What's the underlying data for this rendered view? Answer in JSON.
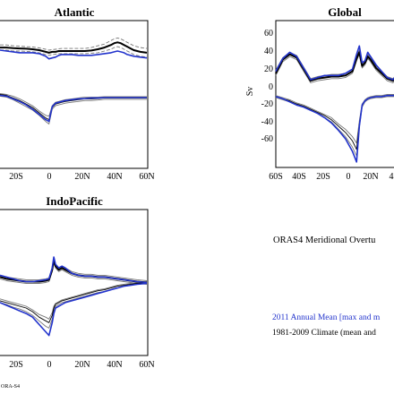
{
  "colors": {
    "year_2011": "#2233cc",
    "climate_mean": "#000000",
    "climate_range": "#777777"
  },
  "headline": "ORAS4 Meridional Overtu",
  "legend": {
    "year_2011": "2011 Annual Mean [max and m",
    "climate": "1981-2009 Climate (mean and"
  },
  "credit": "ORA-S4",
  "chart_data": [
    {
      "type": "line",
      "title": "Atlantic",
      "xlabel": "",
      "ylabel": "",
      "x_ticks": [
        "20S",
        "0",
        "20N",
        "40N",
        "60N"
      ],
      "x": [
        -30,
        -26,
        -22,
        -18,
        -14,
        -10,
        -6,
        -2,
        0,
        2,
        4,
        6,
        8,
        10,
        14,
        18,
        22,
        26,
        30,
        34,
        38,
        40,
        42,
        44,
        46,
        48,
        50,
        52,
        56,
        60
      ],
      "series": [
        {
          "name": "",
          "role": "2011 max",
          "color": "#2233cc",
          "values": [
            18,
            17.5,
            17,
            16.5,
            16.5,
            16.5,
            16,
            14.5,
            13,
            13.5,
            14,
            15,
            15.5,
            15.5,
            15.5,
            15,
            15,
            15,
            15.5,
            16,
            16.5,
            17,
            17.5,
            17,
            16.5,
            15.5,
            15,
            14.5,
            14,
            13.5
          ]
        },
        {
          "name": "",
          "role": "climate max mean",
          "color": "#000000",
          "values": [
            19.5,
            19.5,
            19.2,
            19,
            18.8,
            18.5,
            18,
            17,
            16.5,
            17,
            17,
            17.5,
            17.5,
            17.5,
            17.5,
            17.5,
            17.5,
            17.8,
            18.5,
            19.5,
            21,
            22,
            22.5,
            22,
            21,
            20,
            19,
            18,
            17,
            16.5
          ]
        },
        {
          "name": "",
          "role": "climate max upper",
          "color": "#777777",
          "dashed": true,
          "values": [
            21,
            21,
            20.5,
            20.3,
            20,
            19.8,
            19.3,
            18.5,
            18,
            18.3,
            18.5,
            18.8,
            19,
            19,
            19,
            19,
            19,
            19.5,
            20.5,
            21.5,
            23.5,
            24.5,
            25,
            24.5,
            23.5,
            22.5,
            21.5,
            20.5,
            19.5,
            19
          ]
        },
        {
          "name": "",
          "role": "climate max lower",
          "color": "#777777",
          "dashed": true,
          "values": [
            18,
            18,
            17.5,
            17.5,
            17.3,
            17,
            16.5,
            15.5,
            15,
            15.5,
            15.7,
            16,
            16,
            16,
            16,
            16,
            16,
            16.2,
            16.5,
            17.5,
            18.5,
            19.5,
            20,
            19.5,
            18.5,
            17.5,
            16.5,
            15.5,
            14.5,
            14
          ]
        },
        {
          "name": "",
          "role": "climate min mean",
          "color": "#000000",
          "values": [
            -7.5,
            -8,
            -9.5,
            -11,
            -13,
            -15,
            -18,
            -21,
            -22,
            -15,
            -13,
            -12.5,
            -12,
            -11.5,
            -11,
            -10.5,
            -10,
            -10,
            -9.8,
            -9.5,
            -9.5,
            -9.5,
            -9.5,
            -9.5,
            -9.5,
            -9.5,
            -9.5,
            -9.5,
            -9.5,
            -9.5
          ]
        },
        {
          "name": "",
          "role": "climate min upper",
          "color": "#777777",
          "values": [
            -7,
            -7.5,
            -8.5,
            -10,
            -12,
            -14,
            -17,
            -19.5,
            -20,
            -14,
            -12,
            -11.5,
            -11,
            -10.5,
            -10,
            -9.5,
            -9,
            -9,
            -9,
            -8.8,
            -8.8,
            -8.8,
            -8.8,
            -8.8,
            -8.8,
            -8.8,
            -8.8,
            -8.8,
            -8.8,
            -8.8
          ]
        },
        {
          "name": "",
          "role": "climate min lower",
          "color": "#777777",
          "values": [
            -8.5,
            -9,
            -10.5,
            -12.5,
            -14.5,
            -16.5,
            -19.5,
            -23,
            -24.5,
            -16,
            -14,
            -13.5,
            -13,
            -12.5,
            -12,
            -11.5,
            -11,
            -11,
            -10.7,
            -10.3,
            -10.3,
            -10.3,
            -10.3,
            -10.3,
            -10.3,
            -10.3,
            -10.3,
            -10.3,
            -10.3,
            -10.3
          ]
        },
        {
          "name": "",
          "role": "2011 min",
          "color": "#2233cc",
          "values": [
            -8,
            -8.5,
            -10,
            -11.5,
            -13.5,
            -16,
            -19,
            -22,
            -23,
            -14.5,
            -12.5,
            -12,
            -11.5,
            -11,
            -10.5,
            -10,
            -9.8,
            -9.5,
            -9.5,
            -9.3,
            -9.3,
            -9.3,
            -9.3,
            -9.3,
            -9.3,
            -9.3,
            -9.3,
            -9.3,
            -9.3,
            -9.3
          ]
        }
      ]
    },
    {
      "type": "line",
      "title": "Global",
      "xlabel": "",
      "ylabel": "Sv",
      "y_ticks": [
        60,
        40,
        20,
        0,
        -20,
        -40,
        -60
      ],
      "x_ticks": [
        "60S",
        "40S",
        "20S",
        "0",
        "20N",
        "4"
      ],
      "x": [
        -60,
        -55,
        -50,
        -45,
        -40,
        -35,
        -30,
        -25,
        -20,
        -15,
        -10,
        -5,
        -2,
        0,
        2,
        4,
        6,
        8,
        12,
        16,
        20,
        24,
        28,
        30
      ],
      "series": [
        {
          "name": "",
          "role": "2011 max",
          "color": "#2233cc",
          "values": [
            22,
            34,
            40,
            36,
            25,
            14,
            16,
            18,
            18,
            18,
            20,
            24,
            38,
            46,
            30,
            32,
            40,
            36,
            28,
            22,
            16,
            14,
            20,
            22
          ]
        },
        {
          "name": "",
          "role": "climate max mean",
          "color": "#000000",
          "values": [
            20,
            33,
            38,
            35,
            24,
            13,
            15,
            16,
            17,
            17,
            18,
            22,
            34,
            40,
            27,
            30,
            36,
            33,
            25,
            20,
            15,
            13,
            18,
            20
          ]
        },
        {
          "name": "",
          "role": "climate max upper",
          "color": "#777777",
          "values": [
            23,
            35,
            40,
            37,
            26,
            15,
            17,
            18,
            19,
            19,
            20,
            24,
            36,
            42,
            29,
            32,
            38,
            35,
            27,
            22,
            17,
            15,
            20,
            22
          ]
        },
        {
          "name": "",
          "role": "climate max lower",
          "color": "#777777",
          "values": [
            18,
            31,
            36,
            33,
            22,
            11,
            13,
            14,
            15,
            15,
            16,
            20,
            32,
            38,
            25,
            28,
            34,
            31,
            23,
            18,
            13,
            11,
            16,
            18
          ]
        },
        {
          "name": "",
          "role": "climate min mean",
          "color": "#000000",
          "values": [
            -2,
            -4,
            -6,
            -9,
            -11,
            -14,
            -17,
            -20,
            -24,
            -30,
            -36,
            -44,
            -52,
            -28,
            -10,
            -6,
            -4,
            -3,
            -2,
            -2,
            -1,
            -1,
            -1,
            -1
          ]
        },
        {
          "name": "",
          "role": "climate min upper",
          "color": "#777777",
          "values": [
            -1,
            -3,
            -5,
            -8,
            -10,
            -13,
            -16,
            -19,
            -22,
            -28,
            -33,
            -40,
            -46,
            -25,
            -9,
            -5,
            -3,
            -2,
            -1,
            -1,
            0,
            0,
            0,
            0
          ]
        },
        {
          "name": "",
          "role": "climate min lower",
          "color": "#777777",
          "values": [
            -3,
            -5,
            -7,
            -10,
            -12,
            -15,
            -18,
            -22,
            -26,
            -33,
            -40,
            -50,
            -58,
            -31,
            -12,
            -7,
            -5,
            -4,
            -3,
            -3,
            -2,
            -2,
            -2,
            -2
          ]
        },
        {
          "name": "",
          "role": "2011 min",
          "color": "#2233cc",
          "values": [
            -2,
            -4,
            -7,
            -10,
            -12,
            -15,
            -18,
            -22,
            -27,
            -34,
            -42,
            -54,
            -64,
            -30,
            -10,
            -6,
            -4,
            -3,
            -2,
            -2,
            -1,
            -1,
            -1,
            -1
          ]
        }
      ]
    },
    {
      "type": "line",
      "title": "IndoPacific",
      "xlabel": "",
      "ylabel": "",
      "x_ticks": [
        "20S",
        "0",
        "20N",
        "40N",
        "60N"
      ],
      "x": [
        -30,
        -26,
        -22,
        -18,
        -14,
        -10,
        -6,
        -2,
        0,
        2,
        3,
        4,
        6,
        8,
        10,
        14,
        18,
        22,
        26,
        30,
        34,
        38,
        42,
        46,
        50,
        54,
        60
      ],
      "series": [
        {
          "name": "",
          "role": "2011 max",
          "color": "#2233cc",
          "values": [
            4,
            3,
            2,
            1,
            0.5,
            0.5,
            1,
            1.5,
            2,
            8,
            14,
            10,
            8,
            9,
            8,
            5,
            4,
            3.5,
            3.5,
            3,
            3,
            2.5,
            2,
            1.5,
            1,
            0.5,
            0
          ]
        },
        {
          "name": "",
          "role": "climate max mean",
          "color": "#000000",
          "values": [
            3,
            2,
            1.5,
            1,
            0.5,
            0.5,
            0.5,
            1,
            1.5,
            7,
            12,
            9,
            7,
            8,
            7,
            5,
            4,
            3.5,
            3.5,
            3,
            3,
            2.5,
            2,
            1.5,
            1,
            0.5,
            0
          ]
        },
        {
          "name": "",
          "role": "climate max upper",
          "color": "#777777",
          "values": [
            4,
            3,
            2.5,
            2,
            1.5,
            1.5,
            1.5,
            2,
            2.5,
            8,
            13,
            10,
            8,
            9,
            8,
            6,
            5,
            4.5,
            4.5,
            4,
            4,
            3.5,
            3,
            2.5,
            2,
            1.5,
            1
          ]
        },
        {
          "name": "",
          "role": "climate max lower",
          "color": "#777777",
          "values": [
            2,
            1,
            0.5,
            0,
            -0.5,
            -0.5,
            -0.5,
            0,
            0.5,
            6,
            11,
            8,
            6,
            7,
            6,
            4,
            3,
            2.5,
            2.5,
            2,
            2,
            1.5,
            1,
            0.5,
            0,
            -0.5,
            -1
          ]
        },
        {
          "name": "",
          "role": "climate min mean",
          "color": "#000000",
          "values": [
            -10,
            -11,
            -12,
            -13,
            -14,
            -16,
            -19,
            -21,
            -22,
            -18,
            -14,
            -12,
            -11,
            -10,
            -9.5,
            -8.5,
            -7.5,
            -6.5,
            -5.5,
            -4.5,
            -4,
            -3,
            -2,
            -1.5,
            -1,
            -0.5,
            0
          ]
        },
        {
          "name": "",
          "role": "climate min upper",
          "color": "#777777",
          "values": [
            -9,
            -10,
            -11,
            -12,
            -13,
            -15,
            -17.5,
            -19,
            -20,
            -16.5,
            -13,
            -11.5,
            -10.5,
            -9.5,
            -9,
            -8,
            -7,
            -6,
            -5,
            -4,
            -3.5,
            -2.5,
            -1.5,
            -1,
            -0.5,
            0,
            0.5
          ]
        },
        {
          "name": "",
          "role": "climate min lower",
          "color": "#777777",
          "values": [
            -11,
            -12,
            -13.5,
            -14.5,
            -16,
            -18,
            -21,
            -24,
            -25,
            -20,
            -15.5,
            -13,
            -12,
            -11,
            -10.5,
            -9.5,
            -8.5,
            -7.5,
            -6.5,
            -5.5,
            -5,
            -4,
            -3,
            -2,
            -1.5,
            -1,
            -0.5
          ]
        },
        {
          "name": "",
          "role": "2011 min",
          "color": "#2233cc",
          "values": [
            -11,
            -12.5,
            -14,
            -15.5,
            -17,
            -19,
            -23,
            -27,
            -29,
            -22,
            -17,
            -14,
            -13,
            -12,
            -11,
            -10,
            -9,
            -8,
            -7,
            -6,
            -5,
            -4,
            -3,
            -2,
            -1.5,
            -1,
            -0.5
          ]
        }
      ]
    }
  ]
}
